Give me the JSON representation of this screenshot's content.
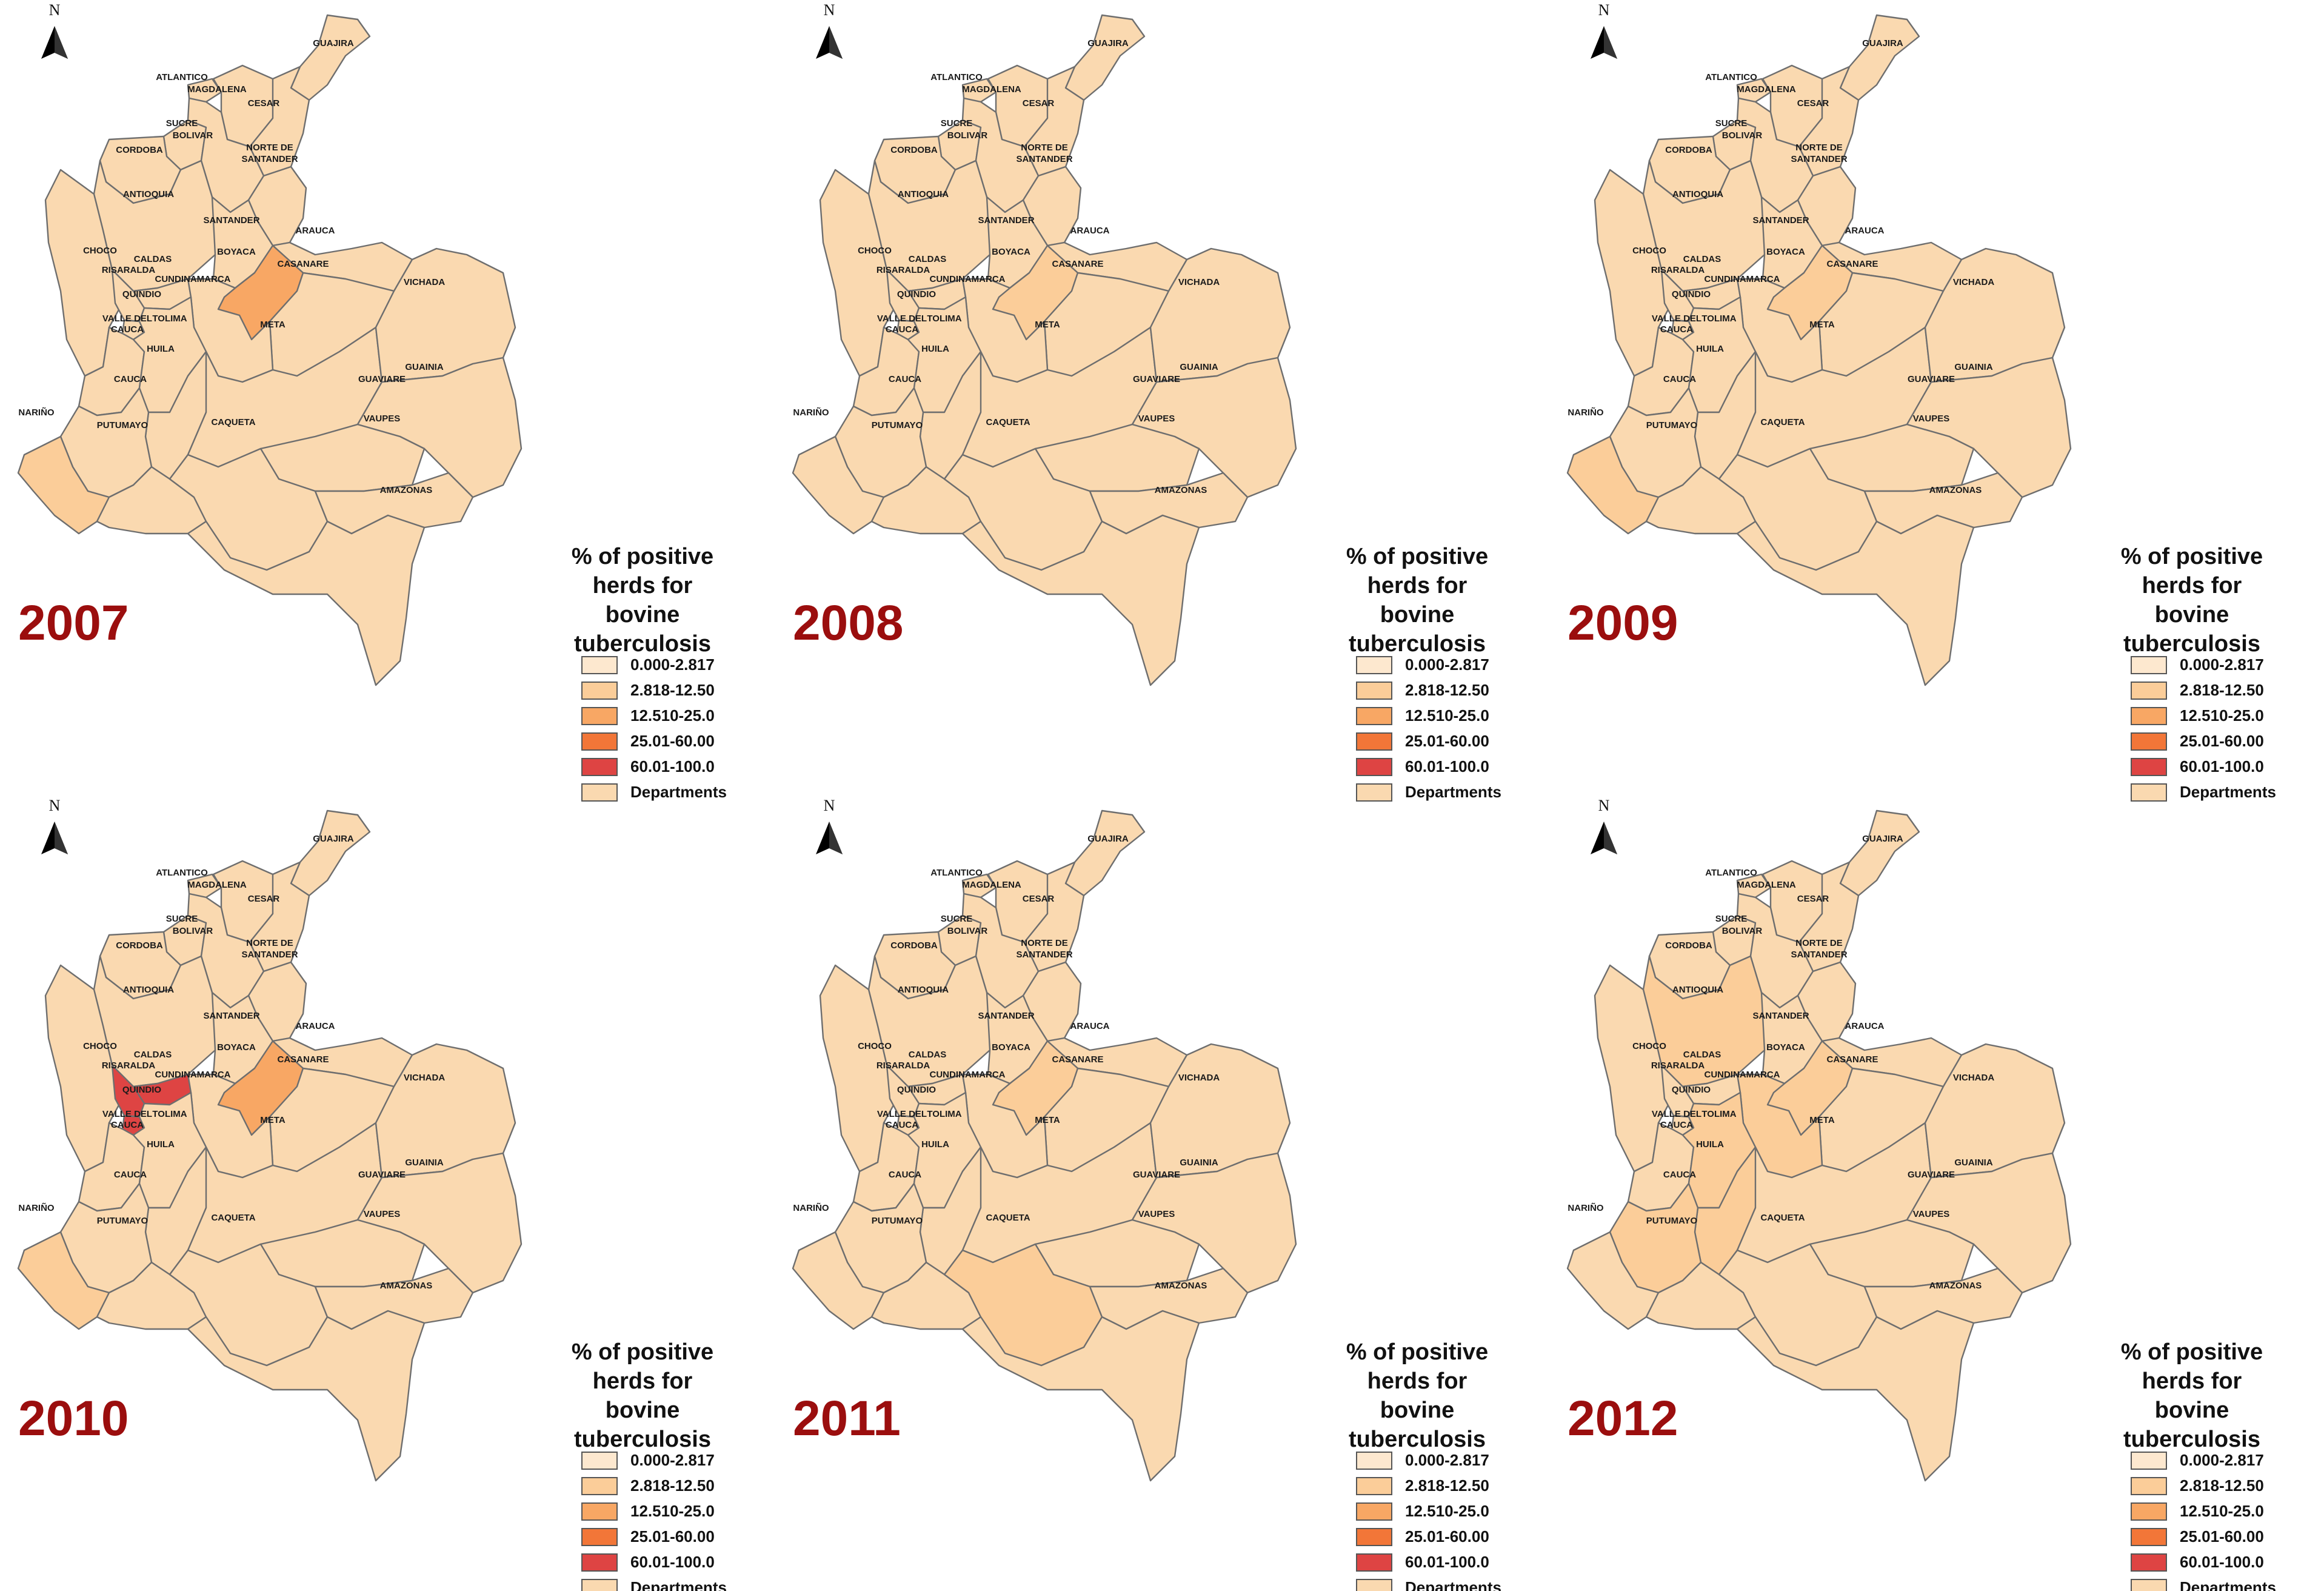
{
  "legend": {
    "title_lines": [
      "% of positive",
      "herds for",
      "bovine",
      "tuberculosis"
    ],
    "classes": [
      {
        "label": "0.000-2.817",
        "color": "#fde8cf"
      },
      {
        "label": "2.818-12.50",
        "color": "#fbcd99"
      },
      {
        "label": "12.510-25.0",
        "color": "#f8a764"
      },
      {
        "label": "25.01-60.00",
        "color": "#f27638"
      },
      {
        "label": "60.01-100.0",
        "color": "#de4443"
      },
      {
        "label": "Departments",
        "color": "#fad9b0"
      }
    ]
  },
  "north_arrow": {
    "letter": "N"
  },
  "department_labels": [
    "GUAJIRA",
    "ATLANTICO",
    "MAGDALENA",
    "CESAR",
    "SUCRE",
    "BOLIVAR",
    "NORTE DE",
    "SANTANDER",
    "CORDOBA",
    "ANTIOQUIA",
    "SANTANDER",
    "ARAUCA",
    "CHOCO",
    "BOYACA",
    "CASANARE",
    "CALDAS",
    "RISARALDA",
    "CUNDINAMARCA",
    "VICHADA",
    "QUINDIO",
    "VALLE DEL",
    "CAUCA",
    "TOLIMA",
    "HUILA",
    "META",
    "GUAINIA",
    "CAUCA",
    "GUAVIARE",
    "NARIÑO",
    "PUTUMAYO",
    "CAQUETA",
    "VAUPES",
    "AMAZONAS"
  ],
  "panels": [
    {
      "year": "2007",
      "highlights": {
        "BOYACA": 2,
        "NARINO": 1
      }
    },
    {
      "year": "2008",
      "highlights": {
        "BOYACA": 1
      }
    },
    {
      "year": "2009",
      "highlights": {
        "BOYACA": 1,
        "NARINO": 1
      }
    },
    {
      "year": "2010",
      "highlights": {
        "BOYACA": 2,
        "NARINO": 1,
        "CALDAS": 4,
        "RISARALDA": 4,
        "QUINDIO": 4
      }
    },
    {
      "year": "2011",
      "highlights": {
        "BOYACA": 1,
        "CAQUETA": 1
      }
    },
    {
      "year": "2012",
      "highlights": {
        "ANTIOQUIA": 1,
        "BOYACA": 1,
        "CAUCA": 1,
        "CUNDINAMARCA": 1,
        "TOLIMA": 1,
        "HUILA": 1
      }
    }
  ]
}
